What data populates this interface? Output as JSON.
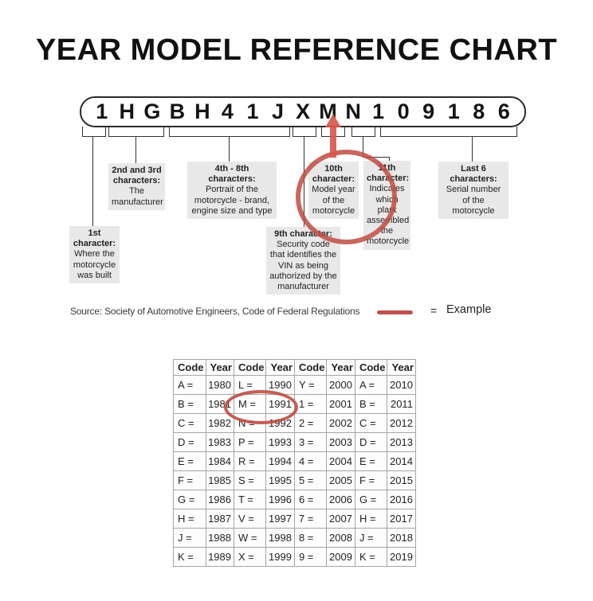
{
  "title": "YEAR MODEL REFERENCE CHART",
  "vin": {
    "characters": [
      "1",
      "H",
      "G",
      "B",
      "H",
      "4",
      "1",
      "J",
      "X",
      "M",
      "N",
      "1",
      "0",
      "9",
      "1",
      "8",
      "6"
    ]
  },
  "callouts": [
    {
      "title": "1st character:",
      "body": "Where the motorcycle was built"
    },
    {
      "title": "2nd and 3rd characters:",
      "body": "The manufacturer"
    },
    {
      "title": "4th - 8th characters:",
      "body": "Portrait of the motorcycle - brand, engine size and type"
    },
    {
      "title": "9th character:",
      "body": "Security code that identifies the VIN as being authorized by the manufacturer"
    },
    {
      "title": "10th character:",
      "body": "Model year of the motorcycle"
    },
    {
      "title": "11th character:",
      "body": "Indicates which plant assembled the motorcycle"
    },
    {
      "title": "Last 6 characters:",
      "body": "Serial number of the motorcycle"
    }
  ],
  "source_line": "Source:  Society of Automotive Engineers, Code of Federal Regulations",
  "legend": {
    "equals": "=",
    "label": "Example"
  },
  "colors": {
    "accent_red": "#c0504d",
    "arrow_red": "#d9584c",
    "callout_gray": "#e8e8e8"
  },
  "year_table": {
    "headers": [
      "Code",
      "Year",
      "Code",
      "Year",
      "Code",
      "Year",
      "Code",
      "Year"
    ],
    "rows": [
      [
        "A =",
        "1980",
        "L =",
        "1990",
        "Y =",
        "2000",
        "A =",
        "2010"
      ],
      [
        "B =",
        "1981",
        "M =",
        "1991",
        "1 =",
        "2001",
        "B =",
        "2011"
      ],
      [
        "C =",
        "1982",
        "N =",
        "1992",
        "2 =",
        "2002",
        "C =",
        "2012"
      ],
      [
        "D =",
        "1983",
        "P =",
        "1993",
        "3 =",
        "2003",
        "D =",
        "2013"
      ],
      [
        "E =",
        "1984",
        "R =",
        "1994",
        "4 =",
        "2004",
        "E =",
        "2014"
      ],
      [
        "F =",
        "1985",
        "S =",
        "1995",
        "5 =",
        "2005",
        "F =",
        "2015"
      ],
      [
        "G =",
        "1986",
        "T =",
        "1996",
        "6 =",
        "2006",
        "G =",
        "2016"
      ],
      [
        "H =",
        "1987",
        "V =",
        "1997",
        "7 =",
        "2007",
        "H =",
        "2017"
      ],
      [
        "J =",
        "1988",
        "W =",
        "1998",
        "8 =",
        "2008",
        "J =",
        "2018"
      ],
      [
        "K =",
        "1989",
        "X =",
        "1999",
        "9 =",
        "2009",
        "K =",
        "2019"
      ]
    ],
    "highlighted_cell": "M = 1991"
  }
}
